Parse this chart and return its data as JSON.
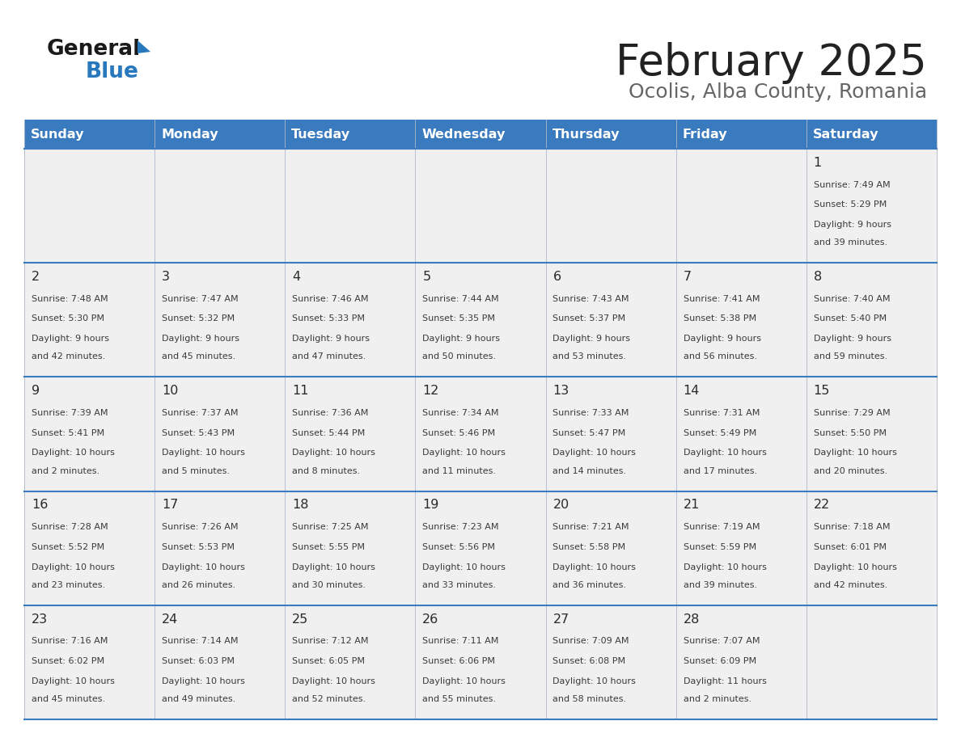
{
  "title": "February 2025",
  "subtitle": "Ocolis, Alba County, Romania",
  "header_bg": "#3a7abf",
  "header_text": "#ffffff",
  "weekdays": [
    "Sunday",
    "Monday",
    "Tuesday",
    "Wednesday",
    "Thursday",
    "Friday",
    "Saturday"
  ],
  "row_bg": "#f0f0f0",
  "day_number_color": "#2a2a2a",
  "day_info_color": "#3a3a3a",
  "grid_line_color": "#3a7abf",
  "title_color": "#222222",
  "subtitle_color": "#666666",
  "logo_general_color": "#1a1a1a",
  "logo_blue_color": "#2878be",
  "days": [
    {
      "day": 1,
      "col": 6,
      "row": 0,
      "sunrise": "7:49 AM",
      "sunset": "5:29 PM",
      "daylight_hours": 9,
      "daylight_minutes": 39
    },
    {
      "day": 2,
      "col": 0,
      "row": 1,
      "sunrise": "7:48 AM",
      "sunset": "5:30 PM",
      "daylight_hours": 9,
      "daylight_minutes": 42
    },
    {
      "day": 3,
      "col": 1,
      "row": 1,
      "sunrise": "7:47 AM",
      "sunset": "5:32 PM",
      "daylight_hours": 9,
      "daylight_minutes": 45
    },
    {
      "day": 4,
      "col": 2,
      "row": 1,
      "sunrise": "7:46 AM",
      "sunset": "5:33 PM",
      "daylight_hours": 9,
      "daylight_minutes": 47
    },
    {
      "day": 5,
      "col": 3,
      "row": 1,
      "sunrise": "7:44 AM",
      "sunset": "5:35 PM",
      "daylight_hours": 9,
      "daylight_minutes": 50
    },
    {
      "day": 6,
      "col": 4,
      "row": 1,
      "sunrise": "7:43 AM",
      "sunset": "5:37 PM",
      "daylight_hours": 9,
      "daylight_minutes": 53
    },
    {
      "day": 7,
      "col": 5,
      "row": 1,
      "sunrise": "7:41 AM",
      "sunset": "5:38 PM",
      "daylight_hours": 9,
      "daylight_minutes": 56
    },
    {
      "day": 8,
      "col": 6,
      "row": 1,
      "sunrise": "7:40 AM",
      "sunset": "5:40 PM",
      "daylight_hours": 9,
      "daylight_minutes": 59
    },
    {
      "day": 9,
      "col": 0,
      "row": 2,
      "sunrise": "7:39 AM",
      "sunset": "5:41 PM",
      "daylight_hours": 10,
      "daylight_minutes": 2
    },
    {
      "day": 10,
      "col": 1,
      "row": 2,
      "sunrise": "7:37 AM",
      "sunset": "5:43 PM",
      "daylight_hours": 10,
      "daylight_minutes": 5
    },
    {
      "day": 11,
      "col": 2,
      "row": 2,
      "sunrise": "7:36 AM",
      "sunset": "5:44 PM",
      "daylight_hours": 10,
      "daylight_minutes": 8
    },
    {
      "day": 12,
      "col": 3,
      "row": 2,
      "sunrise": "7:34 AM",
      "sunset": "5:46 PM",
      "daylight_hours": 10,
      "daylight_minutes": 11
    },
    {
      "day": 13,
      "col": 4,
      "row": 2,
      "sunrise": "7:33 AM",
      "sunset": "5:47 PM",
      "daylight_hours": 10,
      "daylight_minutes": 14
    },
    {
      "day": 14,
      "col": 5,
      "row": 2,
      "sunrise": "7:31 AM",
      "sunset": "5:49 PM",
      "daylight_hours": 10,
      "daylight_minutes": 17
    },
    {
      "day": 15,
      "col": 6,
      "row": 2,
      "sunrise": "7:29 AM",
      "sunset": "5:50 PM",
      "daylight_hours": 10,
      "daylight_minutes": 20
    },
    {
      "day": 16,
      "col": 0,
      "row": 3,
      "sunrise": "7:28 AM",
      "sunset": "5:52 PM",
      "daylight_hours": 10,
      "daylight_minutes": 23
    },
    {
      "day": 17,
      "col": 1,
      "row": 3,
      "sunrise": "7:26 AM",
      "sunset": "5:53 PM",
      "daylight_hours": 10,
      "daylight_minutes": 26
    },
    {
      "day": 18,
      "col": 2,
      "row": 3,
      "sunrise": "7:25 AM",
      "sunset": "5:55 PM",
      "daylight_hours": 10,
      "daylight_minutes": 30
    },
    {
      "day": 19,
      "col": 3,
      "row": 3,
      "sunrise": "7:23 AM",
      "sunset": "5:56 PM",
      "daylight_hours": 10,
      "daylight_minutes": 33
    },
    {
      "day": 20,
      "col": 4,
      "row": 3,
      "sunrise": "7:21 AM",
      "sunset": "5:58 PM",
      "daylight_hours": 10,
      "daylight_minutes": 36
    },
    {
      "day": 21,
      "col": 5,
      "row": 3,
      "sunrise": "7:19 AM",
      "sunset": "5:59 PM",
      "daylight_hours": 10,
      "daylight_minutes": 39
    },
    {
      "day": 22,
      "col": 6,
      "row": 3,
      "sunrise": "7:18 AM",
      "sunset": "6:01 PM",
      "daylight_hours": 10,
      "daylight_minutes": 42
    },
    {
      "day": 23,
      "col": 0,
      "row": 4,
      "sunrise": "7:16 AM",
      "sunset": "6:02 PM",
      "daylight_hours": 10,
      "daylight_minutes": 45
    },
    {
      "day": 24,
      "col": 1,
      "row": 4,
      "sunrise": "7:14 AM",
      "sunset": "6:03 PM",
      "daylight_hours": 10,
      "daylight_minutes": 49
    },
    {
      "day": 25,
      "col": 2,
      "row": 4,
      "sunrise": "7:12 AM",
      "sunset": "6:05 PM",
      "daylight_hours": 10,
      "daylight_minutes": 52
    },
    {
      "day": 26,
      "col": 3,
      "row": 4,
      "sunrise": "7:11 AM",
      "sunset": "6:06 PM",
      "daylight_hours": 10,
      "daylight_minutes": 55
    },
    {
      "day": 27,
      "col": 4,
      "row": 4,
      "sunrise": "7:09 AM",
      "sunset": "6:08 PM",
      "daylight_hours": 10,
      "daylight_minutes": 58
    },
    {
      "day": 28,
      "col": 5,
      "row": 4,
      "sunrise": "7:07 AM",
      "sunset": "6:09 PM",
      "daylight_hours": 11,
      "daylight_minutes": 2
    }
  ]
}
